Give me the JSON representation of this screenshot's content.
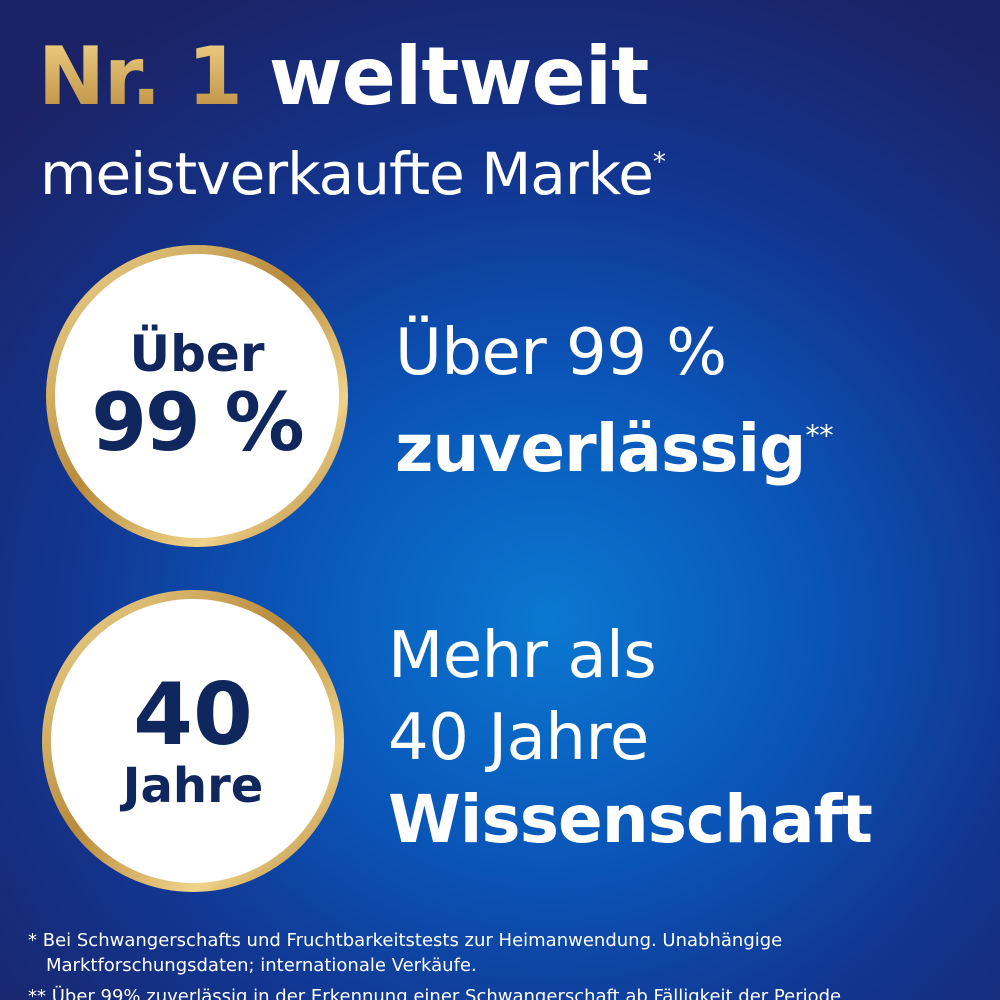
{
  "headline": {
    "highlight": "Nr. 1",
    "rest": "weltweit"
  },
  "subline": {
    "text": "meistverkaufte Marke",
    "mark": "*"
  },
  "badges": [
    {
      "top": "Über",
      "bottom": "99 %"
    },
    {
      "top": "40",
      "bottom": "Jahre"
    }
  ],
  "claims": [
    {
      "lines": [
        "Über 99 %"
      ],
      "bold": "zuverlässig",
      "mark": "**"
    },
    {
      "lines": [
        "Mehr als",
        "40 Jahre"
      ],
      "bold": "Wissenschaft"
    }
  ],
  "footnotes": [
    {
      "mark": "*",
      "text": "Bei Schwangerschafts und Fruchtbarkeitstests zur Heimanwendung. Unabhängige Marktforschungsdaten; internationale Verkäufe."
    },
    {
      "mark": "**",
      "text": "Über 99% zuverlässig in der Erkennung einer Schwangerschaft ab Fälligkeit der Periode"
    }
  ]
}
